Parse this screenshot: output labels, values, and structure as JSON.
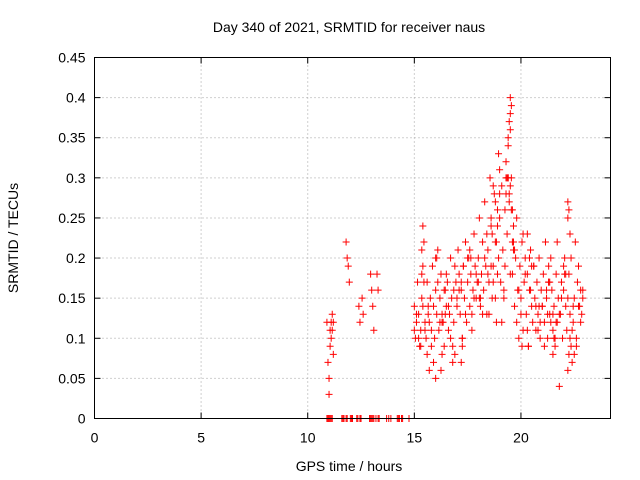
{
  "chart_data": {
    "type": "scatter",
    "title": "Day 340 of 2021, SRMTID for receiver naus",
    "xlabel": "GPS time / hours",
    "ylabel": "SRMTID / TECUs",
    "xlim": [
      0,
      24.2
    ],
    "ylim": [
      0,
      0.45
    ],
    "x_ticks": [
      0,
      5,
      10,
      15,
      20
    ],
    "x_tick_labels": [
      "0",
      "5",
      "10",
      "15",
      "20"
    ],
    "y_ticks": [
      0,
      0.05,
      0.1,
      0.15,
      0.2,
      0.25,
      0.3,
      0.35,
      0.4,
      0.45
    ],
    "y_tick_labels": [
      "0",
      "0.05",
      "0.1",
      "0.15",
      "0.2",
      "0.25",
      "0.3",
      "0.35",
      "0.4",
      "0.45"
    ],
    "grid": true,
    "marker": "+",
    "color": "#ff0000",
    "series": [
      {
        "name": "SRMTID",
        "x": [
          10.9,
          10.95,
          11.0,
          11.0,
          11.05,
          11.05,
          11.1,
          11.1,
          11.15,
          11.15,
          11.2,
          11.2,
          10.9,
          10.95,
          11.0,
          11.05,
          11.1,
          11.15,
          11.6,
          11.65,
          11.7,
          11.8,
          11.85,
          12.0,
          12.05,
          12.1,
          12.3,
          12.35,
          12.45,
          12.5,
          12.9,
          12.95,
          13.0,
          13.05,
          13.1,
          13.2,
          13.3,
          13.35,
          13.7,
          13.8,
          13.9,
          14.2,
          14.25,
          14.3,
          14.4,
          14.45,
          14.75,
          11.8,
          11.85,
          11.9,
          11.95,
          12.4,
          12.45,
          12.55,
          12.6,
          12.95,
          13.0,
          13.05,
          13.1,
          13.25,
          13.3,
          15.0,
          15.05,
          15.1,
          15.15,
          15.2,
          15.25,
          15.3,
          15.35,
          15.4,
          15.45,
          15.5,
          15.55,
          15.6,
          15.65,
          15.7,
          15.75,
          15.8,
          15.85,
          15.9,
          15.95,
          16.0,
          16.05,
          16.1,
          16.15,
          16.2,
          16.25,
          16.3,
          16.35,
          16.4,
          16.45,
          16.5,
          16.55,
          16.6,
          16.65,
          16.7,
          16.75,
          16.8,
          16.85,
          16.9,
          16.95,
          17.0,
          17.05,
          17.1,
          17.15,
          17.2,
          17.25,
          17.3,
          17.35,
          17.4,
          17.45,
          17.5,
          17.55,
          17.6,
          17.65,
          17.7,
          17.75,
          17.8,
          17.85,
          17.9,
          17.95,
          18.0,
          18.05,
          18.1,
          18.15,
          18.2,
          18.25,
          18.3,
          18.35,
          18.4,
          18.45,
          18.5,
          18.55,
          18.6,
          18.65,
          18.7,
          18.75,
          18.8,
          18.85,
          18.9,
          18.95,
          19.0,
          19.05,
          19.1,
          19.15,
          19.2,
          19.25,
          19.3,
          19.35,
          19.4,
          19.45,
          19.5,
          19.55,
          19.6,
          19.65,
          19.7,
          19.75,
          19.8,
          19.85,
          19.9,
          19.95,
          20.0,
          20.05,
          20.1,
          20.15,
          20.2,
          20.25,
          20.3,
          20.35,
          20.4,
          20.45,
          20.5,
          20.55,
          20.6,
          20.65,
          20.7,
          20.75,
          20.8,
          20.85,
          20.9,
          20.95,
          21.0,
          21.05,
          21.1,
          21.15,
          21.2,
          21.25,
          21.3,
          21.35,
          21.4,
          21.45,
          21.5,
          21.55,
          21.6,
          21.65,
          21.7,
          21.75,
          21.8,
          21.85,
          21.9,
          21.95,
          22.0,
          22.05,
          22.1,
          22.15,
          22.2,
          22.25,
          22.3,
          22.35,
          22.4,
          22.45,
          22.5,
          22.55,
          22.6,
          22.65,
          22.7,
          22.75,
          22.8,
          22.85,
          22.9,
          15.1,
          15.3,
          15.5,
          15.7,
          15.9,
          16.1,
          16.3,
          16.5,
          16.7,
          16.9,
          17.1,
          17.3,
          17.5,
          17.7,
          17.9,
          18.1,
          18.3,
          18.5,
          18.7,
          18.9,
          19.1,
          19.3,
          19.5,
          19.7,
          19.9,
          20.1,
          20.3,
          20.5,
          20.7,
          20.9,
          21.1,
          21.3,
          21.5,
          21.7,
          21.9,
          22.1,
          22.3,
          22.5,
          22.7,
          22.9,
          15.2,
          15.4,
          15.6,
          15.8,
          16.0,
          16.2,
          16.4,
          16.6,
          16.8,
          17.0,
          17.2,
          17.4,
          17.6,
          17.8,
          18.0,
          18.2,
          18.4,
          18.6,
          18.8,
          19.0,
          19.2,
          19.4,
          19.6,
          19.8,
          20.0,
          20.2,
          20.4,
          20.6,
          20.8,
          21.0,
          21.2,
          21.4,
          21.6,
          21.8,
          22.0,
          22.2,
          22.4,
          22.6,
          22.8,
          15.0,
          15.35,
          15.65,
          16.05,
          16.45,
          16.85,
          17.25,
          17.65,
          18.05,
          18.45,
          18.85,
          19.25,
          19.65,
          20.05,
          20.45,
          20.85,
          21.25,
          21.65,
          22.05,
          22.45,
          18.7,
          18.8,
          18.9,
          19.3,
          19.35,
          19.4,
          19.45,
          19.5,
          19.55,
          19.4,
          19.45,
          19.5,
          19.5,
          19.55,
          18.95,
          19.0,
          18.6,
          18.65,
          19.6,
          19.65,
          22.2,
          22.25,
          22.2,
          22.25,
          21.3,
          21.35,
          16.25,
          16.3,
          17.2,
          17.25,
          21.5,
          21.55,
          20.3,
          20.35,
          22.3,
          22.35,
          15.35,
          15.4,
          15.45,
          16.0
        ],
        "y": [
          0.12,
          0.07,
          0.05,
          0.03,
          0.09,
          0.11,
          0.1,
          0.12,
          0.13,
          0.11,
          0.08,
          0.12,
          0.0,
          0.0,
          0.0,
          0.0,
          0.0,
          0.0,
          0.0,
          0.0,
          0.0,
          0.0,
          0.0,
          0.0,
          0.0,
          0.0,
          0.0,
          0.0,
          0.0,
          0.0,
          0.0,
          0.0,
          0.0,
          0.0,
          0.0,
          0.0,
          0.0,
          0.0,
          0.0,
          0.0,
          0.0,
          0.0,
          0.0,
          0.0,
          0.0,
          0.0,
          0.0,
          0.22,
          0.2,
          0.19,
          0.17,
          0.14,
          0.12,
          0.15,
          0.13,
          0.18,
          0.16,
          0.14,
          0.11,
          0.18,
          0.16,
          0.14,
          0.1,
          0.12,
          0.17,
          0.13,
          0.09,
          0.11,
          0.15,
          0.24,
          0.22,
          0.12,
          0.1,
          0.08,
          0.13,
          0.06,
          0.15,
          0.11,
          0.19,
          0.14,
          0.1,
          0.16,
          0.13,
          0.21,
          0.11,
          0.15,
          0.18,
          0.13,
          0.12,
          0.09,
          0.16,
          0.14,
          0.17,
          0.11,
          0.13,
          0.2,
          0.15,
          0.07,
          0.12,
          0.19,
          0.17,
          0.14,
          0.21,
          0.18,
          0.13,
          0.16,
          0.1,
          0.19,
          0.15,
          0.22,
          0.12,
          0.17,
          0.2,
          0.14,
          0.18,
          0.13,
          0.16,
          0.23,
          0.19,
          0.15,
          0.17,
          0.2,
          0.25,
          0.14,
          0.18,
          0.22,
          0.16,
          0.27,
          0.19,
          0.13,
          0.21,
          0.17,
          0.3,
          0.24,
          0.15,
          0.19,
          0.28,
          0.22,
          0.12,
          0.18,
          0.2,
          0.25,
          0.17,
          0.29,
          0.21,
          0.15,
          0.19,
          0.3,
          0.23,
          0.35,
          0.27,
          0.4,
          0.26,
          0.18,
          0.22,
          0.14,
          0.2,
          0.12,
          0.16,
          0.1,
          0.19,
          0.15,
          0.22,
          0.11,
          0.17,
          0.2,
          0.13,
          0.18,
          0.09,
          0.16,
          0.21,
          0.14,
          0.12,
          0.19,
          0.15,
          0.11,
          0.17,
          0.13,
          0.2,
          0.1,
          0.16,
          0.14,
          0.18,
          0.12,
          0.22,
          0.15,
          0.1,
          0.17,
          0.13,
          0.2,
          0.16,
          0.11,
          0.14,
          0.09,
          0.18,
          0.12,
          0.15,
          0.04,
          0.13,
          0.17,
          0.1,
          0.16,
          0.2,
          0.14,
          0.11,
          0.25,
          0.18,
          0.13,
          0.09,
          0.07,
          0.12,
          0.15,
          0.22,
          0.1,
          0.17,
          0.19,
          0.14,
          0.16,
          0.13,
          0.15,
          0.13,
          0.09,
          0.11,
          0.12,
          0.07,
          0.17,
          0.12,
          0.18,
          0.1,
          0.08,
          0.16,
          0.19,
          0.2,
          0.11,
          0.18,
          0.15,
          0.2,
          0.13,
          0.17,
          0.24,
          0.12,
          0.28,
          0.18,
          0.21,
          0.16,
          0.23,
          0.11,
          0.19,
          0.14,
          0.12,
          0.09,
          0.17,
          0.13,
          0.22,
          0.15,
          0.18,
          0.1,
          0.08,
          0.14,
          0.16,
          0.1,
          0.14,
          0.17,
          0.09,
          0.2,
          0.12,
          0.16,
          0.14,
          0.09,
          0.15,
          0.17,
          0.13,
          0.21,
          0.15,
          0.17,
          0.13,
          0.23,
          0.19,
          0.15,
          0.28,
          0.16,
          0.3,
          0.22,
          0.25,
          0.13,
          0.18,
          0.2,
          0.19,
          0.11,
          0.14,
          0.16,
          0.12,
          0.1,
          0.13,
          0.19,
          0.15,
          0.11,
          0.09,
          0.12,
          0.11,
          0.18,
          0.14,
          0.2,
          0.13,
          0.16,
          0.1,
          0.2,
          0.15,
          0.18,
          0.22,
          0.26,
          0.24,
          0.09,
          0.16,
          0.14,
          0.13,
          0.12,
          0.18,
          0.14,
          0.29,
          0.27,
          0.26,
          0.32,
          0.3,
          0.34,
          0.37,
          0.38,
          0.39,
          0.3,
          0.28,
          0.29,
          0.36,
          0.3,
          0.33,
          0.31,
          0.25,
          0.23,
          0.26,
          0.21,
          0.27,
          0.26,
          0.06,
          0.08,
          0.19,
          0.17,
          0.06,
          0.08,
          0.07,
          0.09,
          0.08,
          0.1,
          0.23,
          0.09,
          0.23,
          0.2,
          0.21,
          0.19,
          0.17,
          0.05
        ]
      }
    ]
  }
}
